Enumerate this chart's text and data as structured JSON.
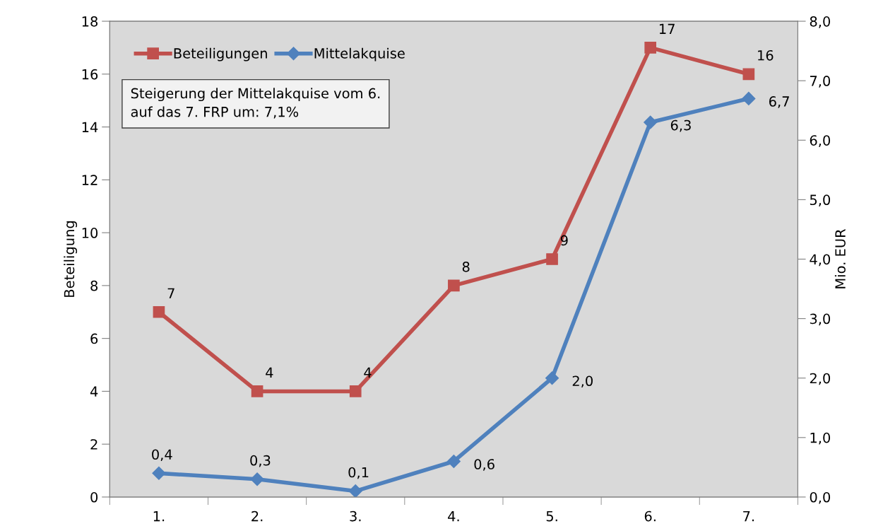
{
  "chart_data": {
    "type": "line",
    "categories": [
      "1.",
      "2.",
      "3.",
      "4.",
      "5.",
      "6.",
      "7."
    ],
    "ylabel": "Beteiligung",
    "y2label": "Mio. EUR",
    "ylim": [
      0,
      18
    ],
    "yticks": [
      0,
      2,
      4,
      6,
      8,
      10,
      12,
      14,
      16,
      18
    ],
    "y2lim": [
      0,
      8
    ],
    "y2ticks": [
      {
        "value": 0,
        "label": "0,0"
      },
      {
        "value": 1,
        "label": "1,0"
      },
      {
        "value": 2,
        "label": "2,0"
      },
      {
        "value": 3,
        "label": "3,0"
      },
      {
        "value": 4,
        "label": "4,0"
      },
      {
        "value": 5,
        "label": "5,0"
      },
      {
        "value": 6,
        "label": "6,0"
      },
      {
        "value": 7,
        "label": "7,0"
      },
      {
        "value": 8,
        "label": "8,0"
      }
    ],
    "series": [
      {
        "name": "Beteiligungen",
        "color": "#c0504d",
        "marker": "square",
        "values": [
          7,
          4,
          4,
          8,
          9,
          17,
          16
        ]
      },
      {
        "name": "Mittelakquise",
        "color": "#4f81bd",
        "marker": "diamond",
        "axis": "y2",
        "values": [
          0.4,
          0.3,
          0.1,
          0.6,
          2.0,
          6.3,
          6.7
        ],
        "value_labels": [
          "0,4",
          "0,3",
          "0,1",
          "0,6",
          "2,0",
          "6,3",
          "6,7"
        ]
      }
    ],
    "data_labels": true,
    "legend": "top left",
    "grid": false,
    "annotations": [
      "Steigerung der Mittelakquise vom 6.\nauf das 7. FRP um: 7,1%"
    ]
  }
}
